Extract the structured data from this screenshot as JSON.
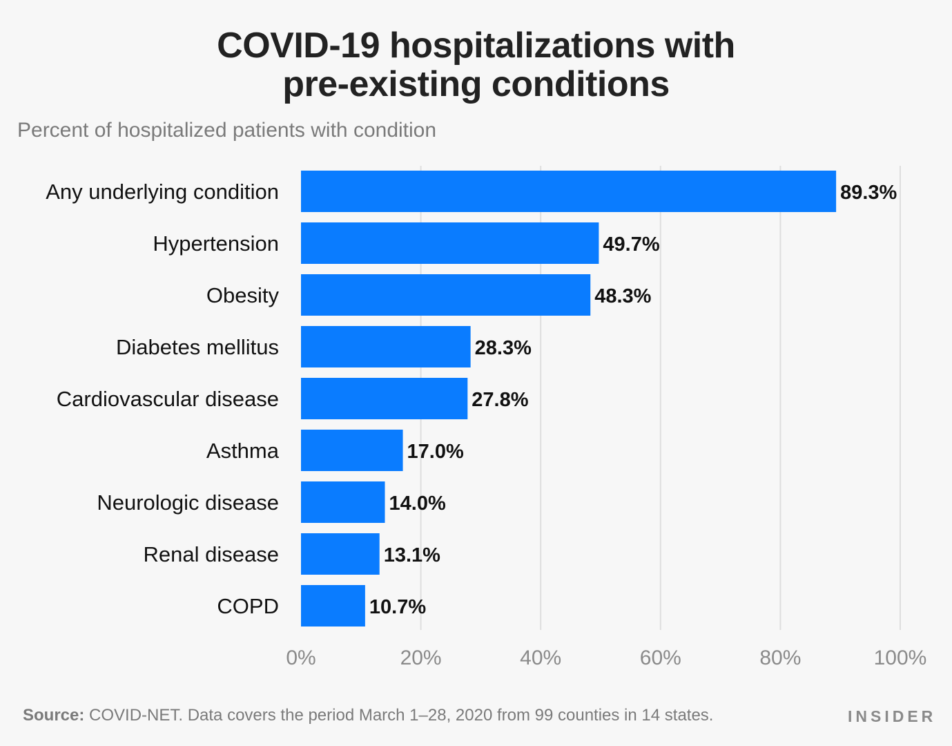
{
  "header": {
    "title_line1": "COVID-19 hospitalizations with",
    "title_line2": "pre-existing conditions",
    "subtitle": "Percent of hospitalized patients with condition"
  },
  "chart_data": {
    "type": "bar",
    "orientation": "horizontal",
    "title": "COVID-19 hospitalizations with pre-existing conditions",
    "subtitle": "Percent of hospitalized patients with condition",
    "categories": [
      "Any underlying condition",
      "Hypertension",
      "Obesity",
      "Diabetes mellitus",
      "Cardiovascular disease",
      "Asthma",
      "Neurologic disease",
      "Renal disease",
      "COPD"
    ],
    "values": [
      89.3,
      49.7,
      48.3,
      28.3,
      27.8,
      17.0,
      14.0,
      13.1,
      10.7
    ],
    "data_labels": [
      "89.3%",
      "49.7%",
      "48.3%",
      "28.3%",
      "27.8%",
      "17.0%",
      "14.0%",
      "13.1%",
      "10.7%"
    ],
    "xlim": [
      0,
      100
    ],
    "x_ticks": [
      0,
      20,
      40,
      60,
      80,
      100
    ],
    "x_tick_labels": [
      "0%",
      "20%",
      "40%",
      "60%",
      "80%",
      "100%"
    ],
    "grid": "vertical",
    "bar_color": "#0a7cff"
  },
  "footer": {
    "source_label": "Source:",
    "source_text": " COVID-NET. Data covers the period March 1–28, 2020 from 99 counties in 14 states.",
    "brand": "INSIDER"
  }
}
